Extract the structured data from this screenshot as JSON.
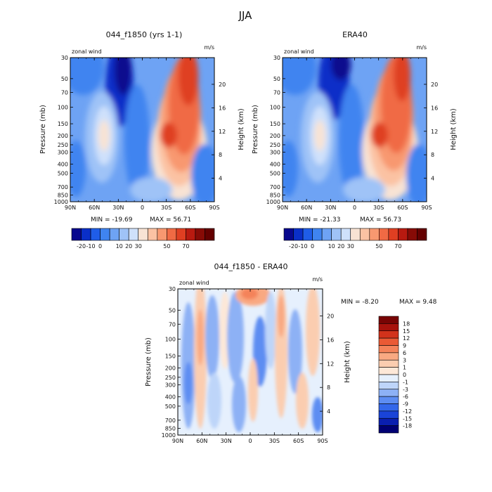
{
  "season": "JJA",
  "colors": {
    "model_obs_palette": [
      "#08088e",
      "#0a2fc8",
      "#1f5de8",
      "#3f84f0",
      "#6ea3f4",
      "#9fc3f7",
      "#cfe1fb",
      "#f8e3d4",
      "#fbc2a3",
      "#f89870",
      "#f06a44",
      "#df3f22",
      "#b81a10",
      "#870b06",
      "#640000"
    ],
    "diff_palette": [
      "#000073",
      "#0a1fb0",
      "#1a44d8",
      "#3367ea",
      "#5d8df2",
      "#8db1f5",
      "#bed5f9",
      "#e6f0fd",
      "#fde8d8",
      "#fbcdb0",
      "#f9a982",
      "#f4835a",
      "#ea5a35",
      "#d2321b",
      "#a7120c",
      "#780404"
    ]
  },
  "panels": [
    {
      "title": "044_f1850 (yrs 1-1)",
      "variable": "zonal wind",
      "units": "m/s",
      "min_label": "MIN = -19.69",
      "max_label": "MAX = 56.71"
    },
    {
      "title": "ERA40",
      "variable": "zonal wind",
      "units": "m/s",
      "min_label": "MIN = -21.33",
      "max_label": "MAX = 56.73"
    },
    {
      "title": "044_f1850 - ERA40",
      "variable": "zonal wind",
      "units": "m/s",
      "min_label": "MIN =  -8.20",
      "max_label": "MAX =   9.48"
    }
  ],
  "colorbars": {
    "model_obs_labels": [
      "-20",
      "-10",
      "0",
      "10",
      "20",
      "30",
      "50",
      "70"
    ],
    "diff_labels": [
      "18",
      "15",
      "12",
      "9",
      "6",
      "3",
      "1",
      "0",
      "-1",
      "-3",
      "-6",
      "-9",
      "-12",
      "-15",
      "-18"
    ]
  },
  "chart_data": [
    {
      "type": "heatmap",
      "title": "044_f1850 (yrs 1-1)",
      "xlabel": "",
      "ylabel": "Pressure (mb)",
      "y2label": "Height (km)",
      "x_ticks": [
        "90N",
        "60N",
        "30N",
        "0",
        "30S",
        "60S",
        "90S"
      ],
      "y_ticks": [
        "30",
        "50",
        "70",
        "100",
        "150",
        "200",
        "250",
        "300",
        "400",
        "500",
        "700",
        "850",
        "1000"
      ],
      "y2_ticks": [
        "20",
        "16",
        "12",
        "8",
        "4"
      ],
      "levels": [
        -20,
        -10,
        0,
        10,
        20,
        30,
        50,
        70
      ],
      "min": -19.69,
      "max": 56.71,
      "features": [
        {
          "lat": 48,
          "p": 200,
          "value": 20
        },
        {
          "lat": -38,
          "p": 200,
          "value": 45
        },
        {
          "lat": -60,
          "p": 30,
          "value": 56.71
        },
        {
          "lat": 15,
          "p": 30,
          "value": -19.69
        }
      ]
    },
    {
      "type": "heatmap",
      "title": "ERA40",
      "xlabel": "",
      "ylabel": "Pressure (mb)",
      "y2label": "Height (km)",
      "x_ticks": [
        "90N",
        "60N",
        "30N",
        "0",
        "30S",
        "60S",
        "90S"
      ],
      "y_ticks": [
        "30",
        "50",
        "70",
        "100",
        "150",
        "200",
        "250",
        "300",
        "400",
        "500",
        "700",
        "850",
        "1000"
      ],
      "y2_ticks": [
        "20",
        "16",
        "12",
        "8",
        "4"
      ],
      "levels": [
        -20,
        -10,
        0,
        10,
        20,
        30,
        50,
        70
      ],
      "min": -21.33,
      "max": 56.73,
      "features": [
        {
          "lat": 45,
          "p": 200,
          "value": 20
        },
        {
          "lat": -35,
          "p": 200,
          "value": 47
        },
        {
          "lat": -58,
          "p": 30,
          "value": 56.73
        },
        {
          "lat": 15,
          "p": 30,
          "value": -21.33
        }
      ]
    },
    {
      "type": "heatmap",
      "title": "044_f1850 - ERA40",
      "xlabel": "",
      "ylabel": "Pressure (mb)",
      "y2label": "Height (km)",
      "x_ticks": [
        "90N",
        "60N",
        "30N",
        "0",
        "30S",
        "60S",
        "90S"
      ],
      "y_ticks": [
        "30",
        "50",
        "70",
        "100",
        "150",
        "200",
        "250",
        "300",
        "400",
        "500",
        "700",
        "850",
        "1000"
      ],
      "y2_ticks": [
        "20",
        "16",
        "12",
        "8",
        "4"
      ],
      "levels": [
        -18,
        -15,
        -12,
        -9,
        -6,
        -3,
        -1,
        0,
        1,
        3,
        6,
        9,
        12,
        15,
        18
      ],
      "min": -8.2,
      "max": 9.48,
      "features": [
        {
          "lat": 0,
          "p": 30,
          "value": 9.48
        },
        {
          "lat": 72,
          "p": 300,
          "value": -8.2
        }
      ]
    }
  ]
}
